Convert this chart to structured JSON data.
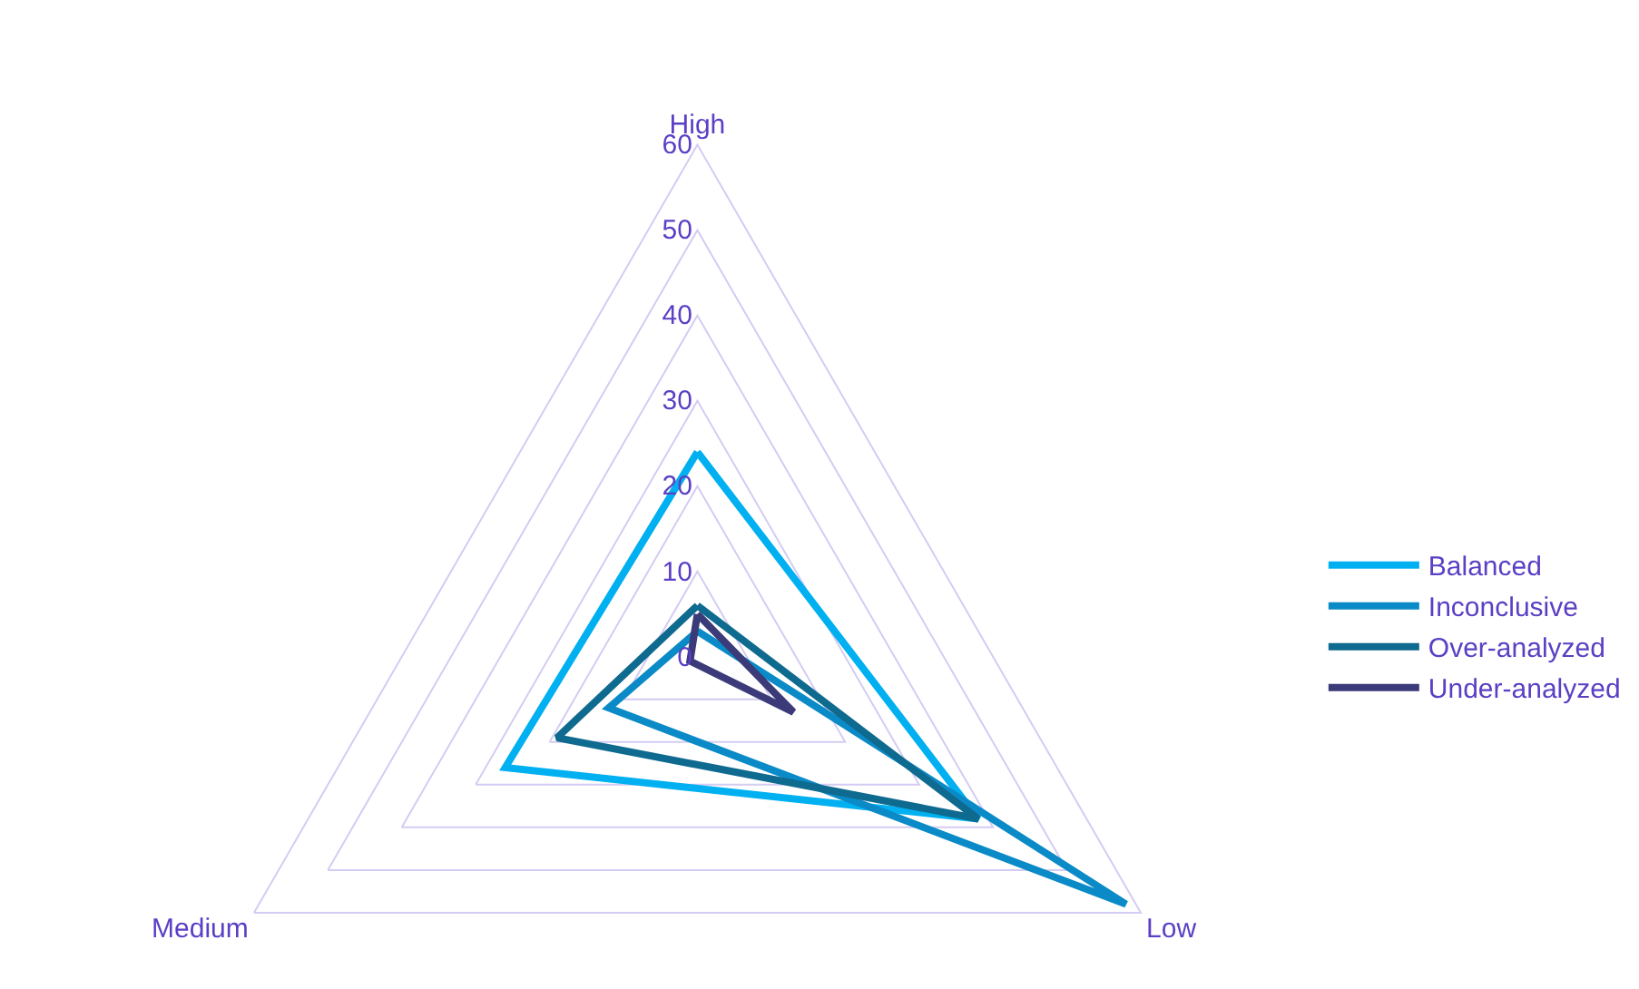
{
  "chart_data": {
    "type": "radar",
    "categories": [
      "High",
      "Low",
      "Medium"
    ],
    "series": [
      {
        "name": "Balanced",
        "color": "#00b0f0",
        "values": [
          24,
          38,
          26
        ]
      },
      {
        "name": "Inconclusive",
        "color": "#0a8ac6",
        "values": [
          3,
          58,
          12
        ]
      },
      {
        "name": "Over-analyzed",
        "color": "#0f6a8f",
        "values": [
          6,
          38,
          19
        ]
      },
      {
        "name": "Under-analyzed",
        "color": "#3b3b7a",
        "values": [
          5,
          13,
          1
        ]
      }
    ],
    "ylim": [
      0,
      60
    ],
    "yticks": [
      0,
      10,
      20,
      30,
      40,
      50,
      60
    ],
    "grid": true,
    "legend": "right",
    "marker": "none",
    "line_style": "solid"
  }
}
